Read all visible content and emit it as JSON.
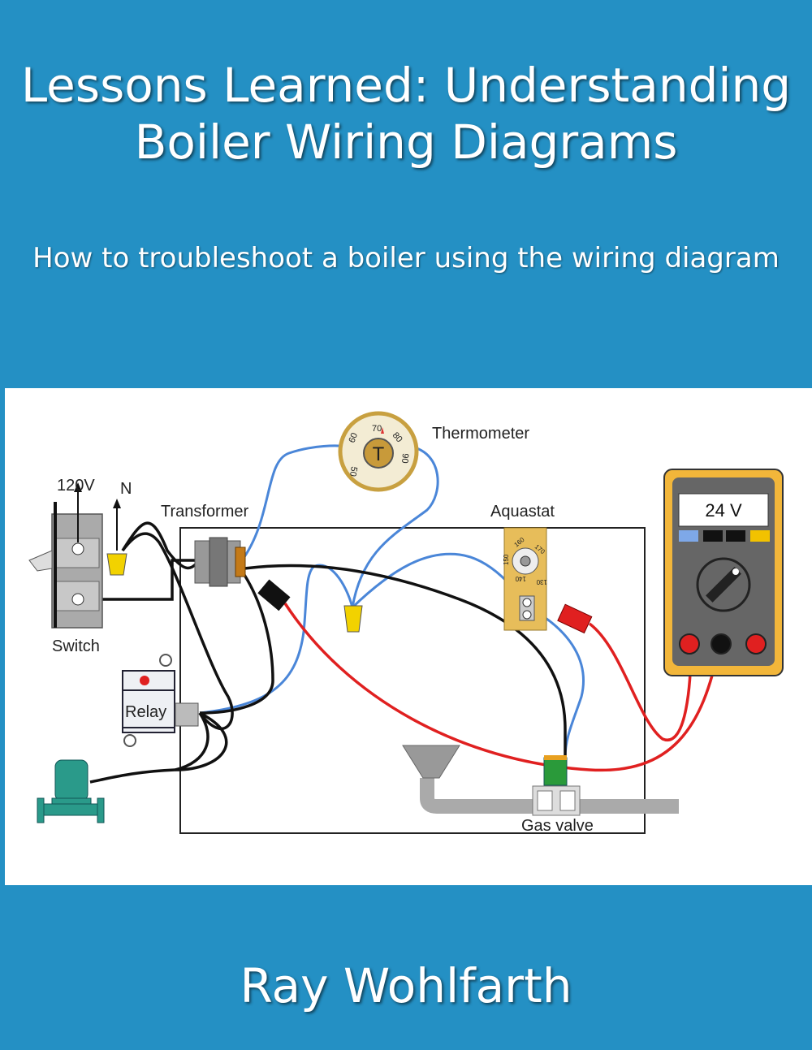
{
  "cover": {
    "title_line1": "Lessons Learned: Understanding",
    "title_line2": "Boiler Wiring Diagrams",
    "subtitle": "How to troubleshoot a boiler using the wiring diagram",
    "author": "Ray Wohlfarth"
  },
  "diagram": {
    "labels": {
      "thermometer": "Thermometer",
      "transformer": "Transformer",
      "aquastat": "Aquastat",
      "switch": "Switch",
      "relay": "Relay",
      "gas_valve": "Gas valve",
      "voltage_120": "120V",
      "neutral": "N"
    },
    "thermometer_dial": {
      "center": "T",
      "ticks": [
        "50",
        "60",
        "70",
        "80",
        "90"
      ]
    },
    "aquastat_dial": {
      "ticks": [
        "130",
        "140",
        "150",
        "160",
        "170"
      ]
    },
    "meter_reading": "24 V"
  },
  "colors": {
    "background": "#2490c4",
    "wire_blue": "#4a86d8",
    "wire_red": "#e02020",
    "wire_black": "#111111",
    "meter_body": "#f2b63a"
  }
}
